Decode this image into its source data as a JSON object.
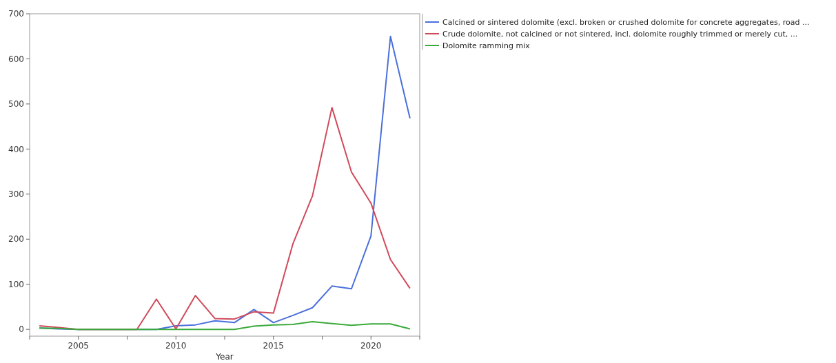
{
  "chart_data": {
    "type": "line",
    "xlabel": "Year",
    "x": [
      2003,
      2004,
      2005,
      2006,
      2007,
      2008,
      2009,
      2010,
      2011,
      2012,
      2013,
      2014,
      2015,
      2016,
      2017,
      2018,
      2019,
      2020,
      2021,
      2022
    ],
    "xlim": [
      2002.5,
      2022.5
    ],
    "xticks": [
      {
        "value": 2002.5,
        "label": null
      },
      2005,
      {
        "value": 2007.5,
        "label": null
      },
      2010,
      {
        "value": 2012.5,
        "label": null
      },
      2015,
      {
        "value": 2017.5,
        "label": null
      },
      2020,
      {
        "value": 2022.5,
        "label": null
      }
    ],
    "ylim": [
      -15,
      700
    ],
    "yticks": [
      0,
      100,
      200,
      300,
      400,
      500,
      600,
      700
    ],
    "grid": false,
    "legend": "top right",
    "line_style": "solid",
    "marker": "none",
    "series": [
      {
        "name": "Calcined or sintered dolomite (excl. broken or crushed dolomite for concrete aggregates, road ...",
        "color": "#4a6fdc",
        "values": [
          3,
          1,
          0,
          0,
          0,
          0,
          0,
          8,
          10,
          19,
          15,
          44,
          15,
          31,
          48,
          96,
          90,
          207,
          650,
          468
        ]
      },
      {
        "name": "Crude dolomite, not calcined or not sintered, incl. dolomite roughly trimmed or merely cut, ...",
        "color": "#d04a5a",
        "values": [
          8,
          4,
          0,
          0,
          0,
          0,
          67,
          1,
          75,
          24,
          23,
          39,
          36,
          190,
          296,
          492,
          349,
          280,
          155,
          91
        ]
      },
      {
        "name": "Dolomite ramming mix",
        "color": "#3aaa3a",
        "values": [
          3,
          2,
          0,
          0,
          0,
          0,
          0,
          0,
          0,
          0,
          0,
          7,
          10,
          11,
          17,
          13,
          9,
          12,
          12,
          1
        ]
      }
    ]
  }
}
